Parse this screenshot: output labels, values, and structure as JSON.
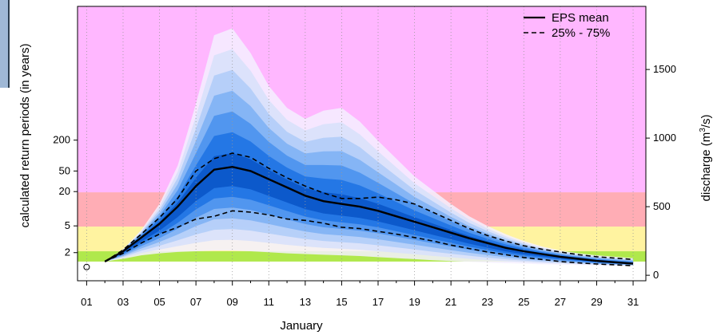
{
  "chart_data": {
    "type": "area",
    "title": "",
    "xlabel": "January",
    "ylabel_left": "calculated return periods (in years)",
    "ylabel_right_prefix": "discharge (m",
    "ylabel_right_sup": "3",
    "ylabel_right_suffix": "/s)",
    "x_tick_labels": [
      "01",
      "03",
      "05",
      "07",
      "09",
      "11",
      "13",
      "15",
      "17",
      "19",
      "21",
      "23",
      "25",
      "27",
      "29",
      "31"
    ],
    "x_tick_days": [
      1,
      3,
      5,
      7,
      9,
      11,
      13,
      15,
      17,
      19,
      21,
      23,
      25,
      27,
      29,
      31
    ],
    "xlim": [
      0.5,
      31.7
    ],
    "ylim": [
      -40,
      1960
    ],
    "right_axis": {
      "ticks": [
        {
          "label": "0",
          "value": 0
        },
        {
          "label": "500",
          "value": 500
        },
        {
          "label": "1000",
          "value": 1000
        },
        {
          "label": "1500",
          "value": 1500
        }
      ]
    },
    "left_axis": {
      "ticks": [
        {
          "label": "2",
          "discharge": 165
        },
        {
          "label": "5",
          "discharge": 360
        },
        {
          "label": "20",
          "discharge": 610
        },
        {
          "label": "50",
          "discharge": 760
        },
        {
          "label": "200",
          "discharge": 985
        }
      ]
    },
    "threshold_bands": [
      {
        "name": "green",
        "from": 100,
        "to": 175,
        "color": "#b0e84c"
      },
      {
        "name": "yellow",
        "from": 175,
        "to": 355,
        "color": "#fff3a0"
      },
      {
        "name": "red",
        "from": 355,
        "to": 605,
        "color": "#ffadb5"
      },
      {
        "name": "purple",
        "from": 605,
        "to": 1960,
        "color": "#ffb7ff"
      }
    ],
    "ensemble_envelope": {
      "x": [
        2,
        3,
        4,
        5,
        6,
        7,
        8,
        9,
        10,
        11,
        12,
        13,
        14,
        15,
        16,
        17,
        18,
        19,
        20,
        21,
        22,
        23,
        24,
        25,
        26,
        27,
        28,
        29,
        30,
        31
      ],
      "max": [
        100,
        190,
        330,
        520,
        800,
        1250,
        1750,
        1800,
        1620,
        1380,
        1220,
        1140,
        1200,
        1220,
        1120,
        980,
        850,
        720,
        620,
        520,
        430,
        360,
        300,
        250,
        210,
        180,
        160,
        145,
        135,
        125
      ],
      "min": [
        100,
        120,
        145,
        160,
        170,
        175,
        180,
        180,
        175,
        168,
        160,
        155,
        150,
        145,
        140,
        132,
        125,
        118,
        110,
        104,
        98,
        92,
        88,
        84,
        80,
        78,
        75,
        72,
        70,
        68
      ]
    },
    "shade_colors": [
      "#f4f0ff",
      "#d9e1fb",
      "#b1cdf8",
      "#7fb1f4",
      "#4b92ee",
      "#1f73e3",
      "#0a55c8"
    ],
    "series": [
      {
        "name": "EPS mean",
        "style": "solid",
        "x": [
          2,
          3,
          4,
          5,
          6,
          7,
          8,
          9,
          10,
          11,
          12,
          13,
          14,
          15,
          16,
          17,
          18,
          19,
          20,
          21,
          22,
          23,
          24,
          25,
          26,
          27,
          28,
          29,
          30,
          31
        ],
        "values": [
          100,
          175,
          275,
          375,
          500,
          650,
          770,
          790,
          760,
          700,
          640,
          580,
          540,
          520,
          500,
          470,
          430,
          390,
          350,
          310,
          270,
          235,
          200,
          175,
          155,
          135,
          120,
          105,
          95,
          85
        ]
      },
      {
        "name": "25% - 75%",
        "style": "dashed",
        "band": "upper",
        "x": [
          2,
          3,
          4,
          5,
          6,
          7,
          8,
          9,
          10,
          11,
          12,
          13,
          14,
          15,
          16,
          17,
          18,
          19,
          20,
          21,
          22,
          23,
          24,
          25,
          26,
          27,
          28,
          29,
          30,
          31
        ],
        "values": [
          100,
          185,
          300,
          420,
          560,
          760,
          850,
          890,
          860,
          780,
          710,
          650,
          600,
          560,
          560,
          570,
          550,
          520,
          460,
          400,
          340,
          290,
          250,
          215,
          190,
          170,
          150,
          135,
          125,
          115
        ]
      },
      {
        "name": "25% - 75%",
        "style": "dashed",
        "band": "lower",
        "x": [
          2,
          3,
          4,
          5,
          6,
          7,
          8,
          9,
          10,
          11,
          12,
          13,
          14,
          15,
          16,
          17,
          18,
          19,
          20,
          21,
          22,
          23,
          24,
          25,
          26,
          27,
          28,
          29,
          30,
          31
        ],
        "values": [
          100,
          160,
          235,
          300,
          350,
          410,
          430,
          470,
          460,
          440,
          410,
          400,
          380,
          350,
          340,
          320,
          300,
          275,
          250,
          220,
          195,
          170,
          150,
          130,
          115,
          100,
          90,
          82,
          76,
          70
        ]
      }
    ],
    "observed_points": [
      {
        "x": 1,
        "y": 60
      }
    ],
    "legend": {
      "position": "top-right",
      "entries": [
        {
          "label": "EPS mean",
          "style": "solid"
        },
        {
          "label": "25% - 75%",
          "style": "dashed"
        }
      ]
    },
    "grid": "dotted-vertical"
  }
}
